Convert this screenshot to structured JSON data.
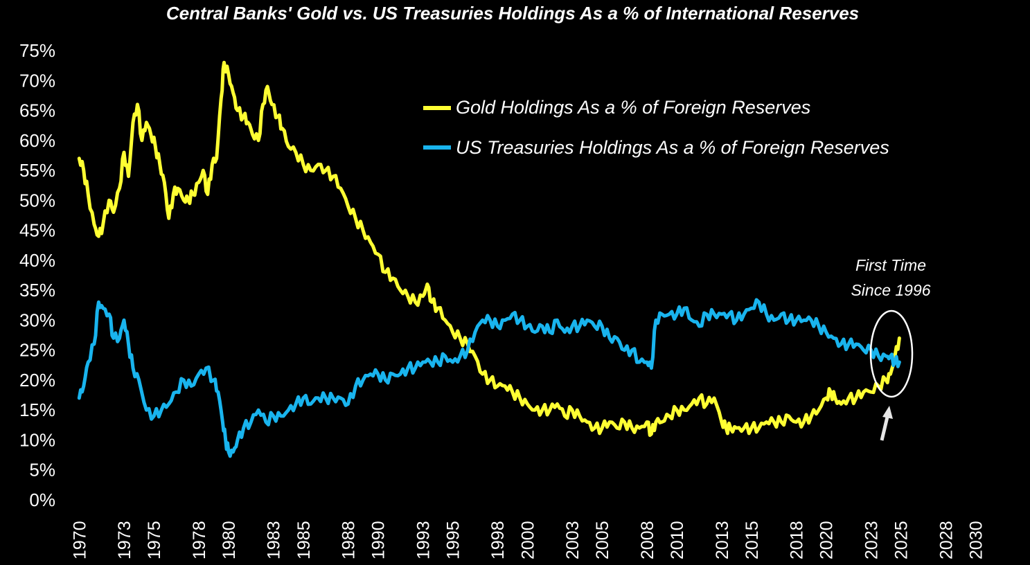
{
  "chart_data": {
    "type": "line",
    "title": "Central Banks' Gold vs. US Treasuries Holdings As a % of International Reserves",
    "xlabel": "",
    "ylabel": "",
    "xlim": [
      1969.8,
      2031
    ],
    "ylim": [
      0,
      75
    ],
    "yticks": [
      "0%",
      "5%",
      "10%",
      "15%",
      "20%",
      "25%",
      "30%",
      "35%",
      "40%",
      "45%",
      "50%",
      "55%",
      "60%",
      "65%",
      "70%",
      "75%"
    ],
    "xticks": [
      "1970",
      "1973",
      "1975",
      "1978",
      "1980",
      "1983",
      "1985",
      "1988",
      "1990",
      "1993",
      "1995",
      "1998",
      "2000",
      "2003",
      "2005",
      "2008",
      "2010",
      "2013",
      "2015",
      "2018",
      "2020",
      "2023",
      "2025",
      "2028",
      "2030"
    ],
    "legend_position": "top-right",
    "series": [
      {
        "name": "Gold Holdings As a % of Foreign Reserves",
        "color": "#FFFF33",
        "x": [
          1970.0,
          1970.3,
          1970.6,
          1971.0,
          1971.3,
          1971.6,
          1972.0,
          1972.3,
          1972.7,
          1973.0,
          1973.3,
          1973.6,
          1973.9,
          1974.2,
          1974.5,
          1974.8,
          1975.1,
          1975.4,
          1975.7,
          1976.0,
          1976.3,
          1976.6,
          1977.0,
          1977.3,
          1977.6,
          1978.0,
          1978.3,
          1978.6,
          1978.9,
          1979.2,
          1979.5,
          1979.7,
          1980.0,
          1980.3,
          1980.6,
          1981.0,
          1981.3,
          1981.6,
          1982.0,
          1982.3,
          1982.6,
          1982.9,
          1983.3,
          1983.6,
          1984.0,
          1984.5,
          1985.0,
          1985.5,
          1986.0,
          1986.5,
          1987.0,
          1987.5,
          1988.0,
          1988.5,
          1989.0,
          1989.5,
          1990.0,
          1990.5,
          1991.0,
          1991.5,
          1992.0,
          1992.5,
          1993.0,
          1993.3,
          1993.6,
          1994.0,
          1994.5,
          1995.0,
          1995.5,
          1996.0,
          1996.5,
          1997.0,
          1997.5,
          1998.0,
          1998.5,
          1999.0,
          1999.5,
          2000.0,
          2000.5,
          2001.0,
          2001.5,
          2002.0,
          2002.5,
          2003.0,
          2003.5,
          2004.0,
          2004.5,
          2005.0,
          2005.5,
          2006.0,
          2006.5,
          2007.0,
          2007.5,
          2008.0,
          2008.3,
          2008.6,
          2009.0,
          2009.5,
          2010.0,
          2010.5,
          2011.0,
          2011.5,
          2012.0,
          2012.5,
          2013.0,
          2013.3,
          2013.6,
          2014.0,
          2014.5,
          2015.0,
          2015.5,
          2016.0,
          2016.5,
          2017.0,
          2017.5,
          2018.0,
          2018.5,
          2019.0,
          2019.5,
          2020.0,
          2020.3,
          2020.6,
          2021.0,
          2021.5,
          2022.0,
          2022.5,
          2023.0,
          2023.5,
          2024.0,
          2024.3,
          2024.6,
          2024.9
        ],
        "values": [
          57,
          55,
          51,
          46,
          44,
          46,
          50,
          48,
          52,
          58,
          54,
          63,
          66,
          60,
          63,
          61,
          59,
          56,
          53,
          47,
          51,
          52,
          50,
          50,
          51,
          53,
          55,
          51,
          56,
          57,
          67,
          73,
          71,
          68,
          65,
          64,
          63,
          61,
          60,
          66,
          69,
          66,
          64,
          62,
          59,
          58,
          56,
          55,
          56,
          55,
          54,
          52,
          49,
          47,
          45,
          43,
          41,
          38,
          37,
          35,
          34,
          33,
          34,
          36,
          33,
          32,
          30,
          28,
          27,
          26,
          24,
          21,
          20,
          19,
          19,
          18,
          17,
          16,
          15,
          15,
          15,
          16,
          14,
          15,
          14,
          13,
          12,
          12,
          13,
          12,
          13,
          12,
          12,
          13,
          11,
          13,
          13,
          14,
          15,
          15,
          16,
          17,
          16,
          17,
          13,
          12,
          12,
          12,
          12,
          12,
          12,
          13,
          13,
          13,
          14,
          13,
          13,
          14,
          15,
          17,
          18,
          17,
          16,
          17,
          17,
          18,
          18,
          19,
          20,
          21,
          24,
          27
        ]
      },
      {
        "name": "US Treasuries Holdings As a % of Foreign Reserves",
        "color": "#19B4EE",
        "x": [
          1970.0,
          1970.3,
          1970.6,
          1971.0,
          1971.3,
          1971.6,
          1972.0,
          1972.3,
          1972.7,
          1973.0,
          1973.3,
          1973.6,
          1974.0,
          1974.5,
          1975.0,
          1975.5,
          1976.0,
          1976.5,
          1977.0,
          1977.5,
          1978.0,
          1978.5,
          1979.0,
          1979.3,
          1979.6,
          1979.8,
          1980.0,
          1980.3,
          1980.6,
          1981.0,
          1981.5,
          1982.0,
          1982.5,
          1983.0,
          1983.5,
          1984.0,
          1984.5,
          1985.0,
          1985.5,
          1986.0,
          1986.5,
          1987.0,
          1987.5,
          1988.0,
          1988.5,
          1989.0,
          1989.5,
          1990.0,
          1990.5,
          1991.0,
          1991.5,
          1992.0,
          1992.5,
          1993.0,
          1993.5,
          1994.0,
          1994.5,
          1995.0,
          1995.5,
          1996.0,
          1996.5,
          1997.0,
          1997.5,
          1998.0,
          1998.5,
          1999.0,
          1999.5,
          2000.0,
          2000.5,
          2001.0,
          2001.5,
          2002.0,
          2002.5,
          2003.0,
          2003.5,
          2004.0,
          2004.5,
          2005.0,
          2005.5,
          2006.0,
          2006.5,
          2007.0,
          2007.5,
          2008.0,
          2008.3,
          2008.6,
          2009.0,
          2009.5,
          2010.0,
          2010.5,
          2011.0,
          2011.5,
          2012.0,
          2012.5,
          2013.0,
          2013.5,
          2014.0,
          2014.5,
          2015.0,
          2015.5,
          2016.0,
          2016.5,
          2017.0,
          2017.5,
          2018.0,
          2018.5,
          2019.0,
          2019.5,
          2020.0,
          2020.5,
          2021.0,
          2021.5,
          2022.0,
          2022.5,
          2023.0,
          2023.5,
          2024.0,
          2024.3,
          2024.6,
          2024.9
        ],
        "values": [
          17,
          19,
          23,
          26,
          33,
          32,
          31,
          27,
          27,
          30,
          26,
          22,
          20,
          15,
          14,
          15,
          16,
          18,
          20,
          19,
          21,
          22,
          20,
          18,
          13,
          10,
          8,
          8,
          10,
          12,
          13,
          15,
          13,
          14,
          14,
          15,
          16,
          17,
          16,
          17,
          17,
          17,
          17,
          16,
          19,
          20,
          21,
          21,
          20,
          21,
          21,
          22,
          22,
          23,
          23,
          23,
          24,
          23,
          24,
          25,
          28,
          30,
          30,
          29,
          30,
          31,
          30,
          29,
          28,
          29,
          28,
          30,
          28,
          29,
          29,
          30,
          29,
          29,
          27,
          27,
          25,
          25,
          23,
          23,
          22,
          30,
          31,
          31,
          31,
          32,
          30,
          29,
          31,
          31,
          31,
          31,
          30,
          31,
          32,
          33,
          31,
          30,
          31,
          30,
          30,
          30,
          30,
          29,
          28,
          27,
          26,
          26,
          26,
          25,
          25,
          24,
          24,
          24,
          23,
          23
        ]
      }
    ],
    "annotation": {
      "line1": "First Time",
      "line2": "Since 1996",
      "target_x": 2024.6,
      "target_y": 23.5
    }
  }
}
